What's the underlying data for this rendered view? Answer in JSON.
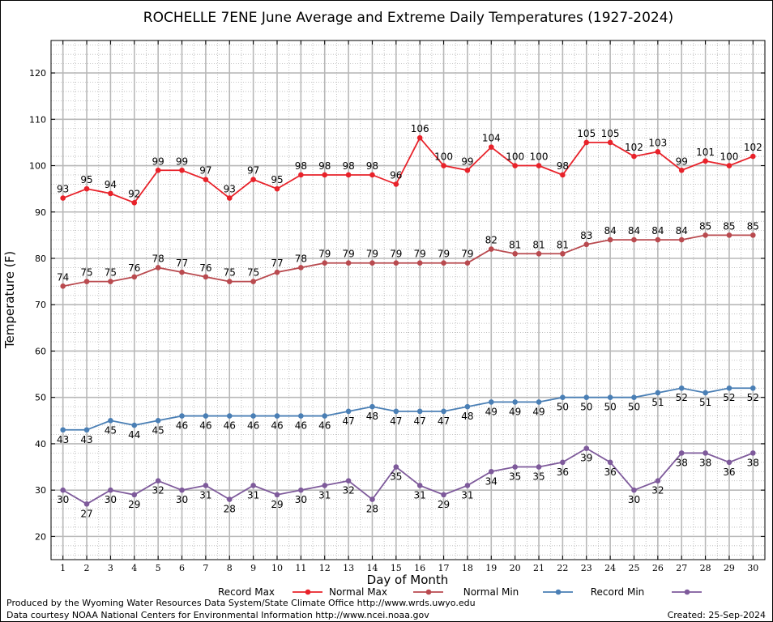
{
  "chart_data": {
    "type": "line",
    "title": "ROCHELLE 7ENE June Average and Extreme Daily Temperatures (1927-2024)",
    "xlabel": "Day of Month",
    "ylabel": "Temperature (F)",
    "x": [
      1,
      2,
      3,
      4,
      5,
      6,
      7,
      8,
      9,
      10,
      11,
      12,
      13,
      14,
      15,
      16,
      17,
      18,
      19,
      20,
      21,
      22,
      23,
      24,
      25,
      26,
      27,
      28,
      29,
      30
    ],
    "xlim": [
      0.5,
      30.5
    ],
    "ylim": [
      15,
      127
    ],
    "yticks": [
      20,
      30,
      40,
      50,
      60,
      70,
      80,
      90,
      100,
      110,
      120
    ],
    "grid": true,
    "legend_position": "bottom",
    "series": [
      {
        "name": "Record Max",
        "color": "#e8222a",
        "values": [
          93,
          95,
          94,
          92,
          99,
          99,
          97,
          93,
          97,
          95,
          98,
          98,
          98,
          98,
          96,
          106,
          100,
          99,
          104,
          100,
          100,
          98,
          105,
          105,
          102,
          103,
          99,
          101,
          100,
          102
        ]
      },
      {
        "name": "Normal Max",
        "color": "#b94a4f",
        "values": [
          74,
          75,
          75,
          76,
          78,
          77,
          76,
          75,
          75,
          77,
          78,
          79,
          79,
          79,
          79,
          79,
          79,
          79,
          82,
          81,
          81,
          81,
          83,
          84,
          84,
          84,
          84,
          85,
          85,
          85
        ]
      },
      {
        "name": "Normal Min",
        "color": "#4a7fb5",
        "values": [
          43,
          43,
          45,
          44,
          45,
          46,
          46,
          46,
          46,
          46,
          46,
          46,
          47,
          48,
          47,
          47,
          47,
          48,
          49,
          49,
          49,
          50,
          50,
          50,
          50,
          51,
          52,
          51,
          52,
          52
        ]
      },
      {
        "name": "Record Min",
        "color": "#7e5a9b",
        "values": [
          30,
          27,
          30,
          29,
          32,
          30,
          31,
          28,
          31,
          29,
          30,
          31,
          32,
          28,
          35,
          31,
          29,
          31,
          34,
          35,
          35,
          36,
          39,
          36,
          30,
          32,
          38,
          38,
          36,
          38
        ]
      }
    ]
  },
  "footer": {
    "produced_by": "Produced by the Wyoming Water Resources Data System/State Climate Office http://www.wrds.uwyo.edu",
    "courtesy": "Data courtesy NOAA National Centers for Environmental Information http://www.ncei.noaa.gov",
    "created": "Created:  25-Sep-2024"
  }
}
